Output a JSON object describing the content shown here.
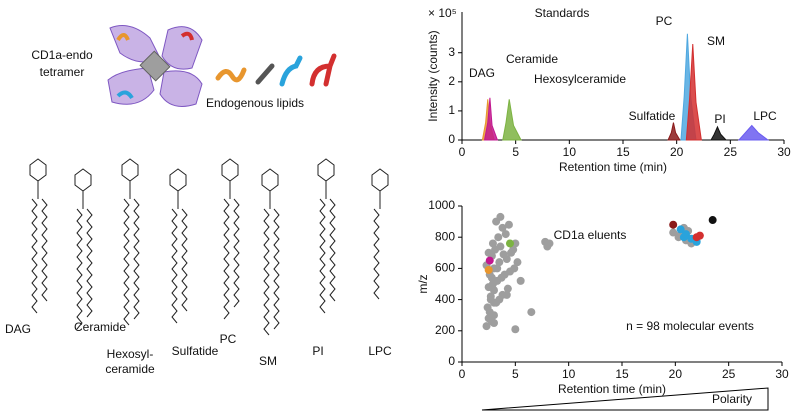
{
  "diagram": {
    "tetramer_label": [
      "CD1a-endo",
      "tetramer"
    ],
    "lipids_label": "Endogenous lipids",
    "lipid_classes": [
      {
        "label": [
          "DAG"
        ],
        "color": "#e8962e"
      },
      {
        "label": [
          "Ceramide"
        ],
        "color": "#c2188f"
      },
      {
        "label": [
          "Hexosyl-",
          "ceramide"
        ],
        "color": "#7cb342"
      },
      {
        "label": [
          "Sulfatide"
        ],
        "color": "#8b1a1a"
      },
      {
        "label": [
          "PC"
        ],
        "color": "#4fa8e0"
      },
      {
        "label": [
          "SM"
        ],
        "color": "#d32f2f"
      },
      {
        "label": [
          "PI"
        ],
        "color": "#111111"
      },
      {
        "label": [
          "LPC"
        ],
        "color": "#6a5cf0"
      }
    ]
  },
  "chart_data": [
    {
      "type": "area",
      "title": "Standards",
      "y_multiplier": "× 10⁵",
      "x_label": "Retention time (min)",
      "y_label": "Intensity (counts)",
      "xlim": [
        0,
        30
      ],
      "xticks": [
        0,
        5,
        10,
        15,
        20,
        25,
        30
      ],
      "ylim": [
        0,
        4.4
      ],
      "yticks": [
        0,
        1,
        2,
        3
      ],
      "series": [
        {
          "name": "DAG",
          "color": "#e8962e",
          "x": [
            1.9,
            2.2,
            2.4,
            2.6,
            3.0
          ],
          "values": [
            0,
            0.6,
            1.4,
            0.6,
            0
          ]
        },
        {
          "name": "Ceramide",
          "color": "#c2188f",
          "x": [
            2.1,
            2.4,
            2.6,
            2.8,
            3.3
          ],
          "values": [
            0,
            0.6,
            1.45,
            0.5,
            0
          ]
        },
        {
          "name": "Hexosylceramide",
          "color": "#7cb342",
          "x": [
            3.8,
            4.1,
            4.4,
            4.8,
            5.5
          ],
          "values": [
            0,
            0.6,
            1.4,
            0.5,
            0
          ]
        },
        {
          "name": "Sulfatide",
          "color": "#8b1a1a",
          "x": [
            19.2,
            19.5,
            19.7,
            19.9,
            20.3
          ],
          "values": [
            0,
            0.25,
            0.6,
            0.25,
            0
          ]
        },
        {
          "name": "PC",
          "color": "#4fa8e0",
          "x": [
            20.4,
            20.7,
            21.0,
            21.3,
            21.8
          ],
          "values": [
            0,
            1.5,
            3.65,
            1.5,
            0
          ]
        },
        {
          "name": "SM",
          "color": "#d32f2f",
          "x": [
            20.9,
            21.2,
            21.5,
            21.8,
            22.3
          ],
          "values": [
            0,
            1.4,
            3.3,
            1.3,
            0
          ]
        },
        {
          "name": "PI",
          "color": "#111111",
          "x": [
            23.2,
            23.5,
            23.8,
            24.1,
            24.6
          ],
          "values": [
            0,
            0.2,
            0.45,
            0.2,
            0
          ]
        },
        {
          "name": "LPC",
          "color": "#6a5cf0",
          "x": [
            25.8,
            26.4,
            27.0,
            27.6,
            28.5
          ],
          "values": [
            0,
            0.25,
            0.5,
            0.25,
            0
          ]
        }
      ]
    },
    {
      "type": "scatter",
      "title": "CD1a eluents",
      "annotation": "n = 98 molecular events",
      "x_label": "Retention time (min)",
      "y_label": "m/z",
      "xlim": [
        0,
        30
      ],
      "xticks": [
        0,
        5,
        10,
        15,
        20,
        25,
        30
      ],
      "ylim": [
        0,
        1000
      ],
      "yticks": [
        0,
        200,
        400,
        600,
        800,
        1000
      ],
      "series": [
        {
          "color": "#9e9e9e",
          "x": [
            2.3,
            2.5,
            2.8,
            3.0,
            2.6,
            2.4,
            3.2,
            3.5,
            2.7,
            3.8,
            3.0,
            2.5,
            2.9,
            3.3,
            3.7,
            4.0,
            2.6,
            4.5,
            3.0,
            2.3,
            3.5,
            4.2,
            2.8,
            3.9,
            4.6,
            2.5,
            3.1,
            4.8,
            3.6,
            5.0,
            2.9,
            3.4,
            4.1,
            3.8,
            3.2,
            3.6,
            4.4,
            5.2,
            4.9,
            5.5,
            6.5,
            5.0,
            7.8,
            8.2,
            8.0,
            3.0,
            2.7,
            4.2,
            3.3,
            2.8,
            20.5,
            21.0,
            20.3,
            21.5,
            20.8,
            22.0,
            21.2,
            19.8,
            3.0,
            4.3
          ],
          "values": [
            230,
            280,
            260,
            300,
            320,
            350,
            380,
            400,
            420,
            430,
            460,
            480,
            500,
            520,
            540,
            560,
            560,
            580,
            600,
            620,
            640,
            660,
            680,
            690,
            700,
            700,
            720,
            720,
            740,
            760,
            760,
            800,
            820,
            860,
            900,
            930,
            880,
            640,
            600,
            520,
            320,
            210,
            770,
            760,
            740,
            380,
            400,
            430,
            600,
            540,
            820,
            780,
            800,
            760,
            860,
            790,
            840,
            830,
            250,
            470
          ]
        },
        {
          "color": "#e8962e",
          "x": [
            2.5
          ],
          "values": [
            590
          ]
        },
        {
          "color": "#c2188f",
          "x": [
            2.6
          ],
          "values": [
            650
          ]
        },
        {
          "color": "#7cb342",
          "x": [
            4.5
          ],
          "values": [
            760
          ]
        },
        {
          "color": "#8b1a1a",
          "x": [
            19.8
          ],
          "values": [
            880
          ]
        },
        {
          "color": "#29a3dc",
          "x": [
            20.5,
            20.8,
            21.0,
            21.5,
            22.0
          ],
          "values": [
            850,
            800,
            820,
            790,
            770
          ]
        },
        {
          "color": "#d32f2f",
          "x": [
            22.0,
            22.3
          ],
          "values": [
            800,
            810
          ]
        },
        {
          "color": "#111111",
          "x": [
            23.5
          ],
          "values": [
            910
          ]
        }
      ]
    }
  ],
  "footer": {
    "polarity_label": "Polarity"
  }
}
